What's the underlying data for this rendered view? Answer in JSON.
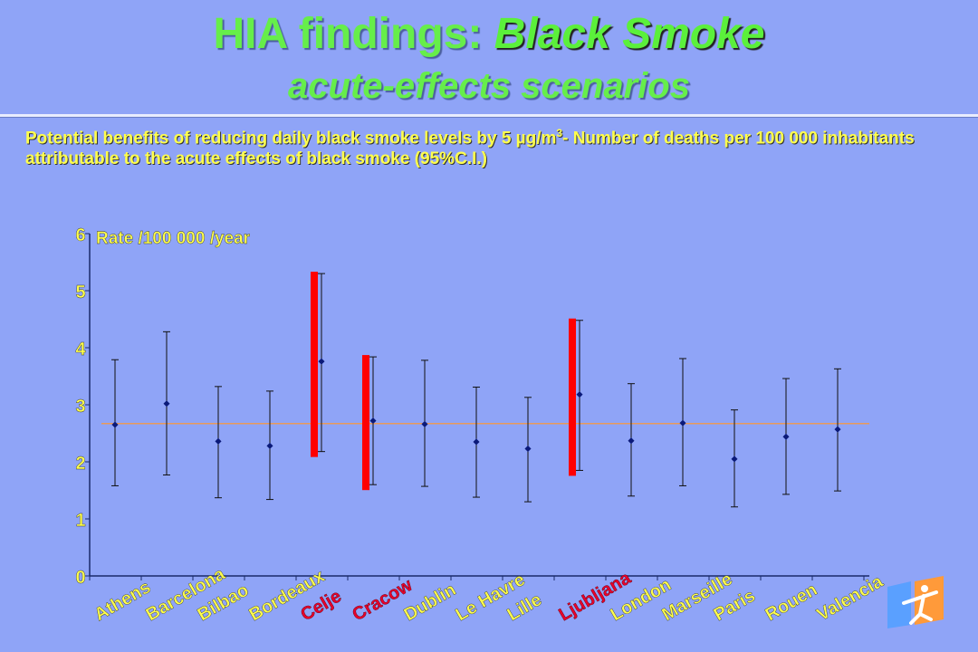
{
  "header": {
    "title_prefix": "HIA findings: ",
    "title_accent": "Black Smoke",
    "subtitle": "acute-effects scenarios"
  },
  "caption": {
    "text_before_sup": "Potential benefits of reducing daily black smoke levels by 5 µg/m",
    "sup": "3",
    "text_after_sup": "- Number of deaths per 100 000 inhabitants attributable to the acute effects of black smoke (95%C.I.)"
  },
  "colors": {
    "background": "#8fa4f7",
    "title": "#66ee4a",
    "caption": "#ffff4d",
    "point": "#0b1a7a",
    "highlight_bar": "#ff0000",
    "highlight_label": "#e8002a",
    "label": "#ffff4d",
    "reference_line": "#e89a5a"
  },
  "chart_data": {
    "type": "scatter",
    "ylabel": "Rate /100 000 /year",
    "ylim": [
      0,
      6
    ],
    "yticks": [
      0,
      1,
      2,
      3,
      4,
      5,
      6
    ],
    "grid": false,
    "reference_line": 2.67,
    "categories": [
      "Athens",
      "Barcelona",
      "Bilbao",
      "Bordeaux",
      "Celje",
      "Cracow",
      "Dublin",
      "Le Havre",
      "Lille",
      "Ljubljana",
      "London",
      "Marseille",
      "Paris",
      "Rouen",
      "Valencia"
    ],
    "highlighted": [
      "Celje",
      "Cracow",
      "Ljubljana"
    ],
    "series": [
      {
        "values": [
          2.65,
          3.02,
          2.36,
          2.28,
          3.76,
          2.72,
          2.66,
          2.35,
          2.23,
          3.18,
          2.37,
          2.68,
          2.05,
          2.44,
          2.57
        ],
        "lower": [
          1.58,
          1.77,
          1.37,
          1.34,
          2.18,
          1.6,
          1.57,
          1.38,
          1.3,
          1.85,
          1.4,
          1.58,
          1.21,
          1.43,
          1.49
        ],
        "upper": [
          3.79,
          4.28,
          3.32,
          3.24,
          5.3,
          3.84,
          3.78,
          3.31,
          3.13,
          4.48,
          3.37,
          3.81,
          2.91,
          3.46,
          3.63
        ]
      }
    ]
  }
}
